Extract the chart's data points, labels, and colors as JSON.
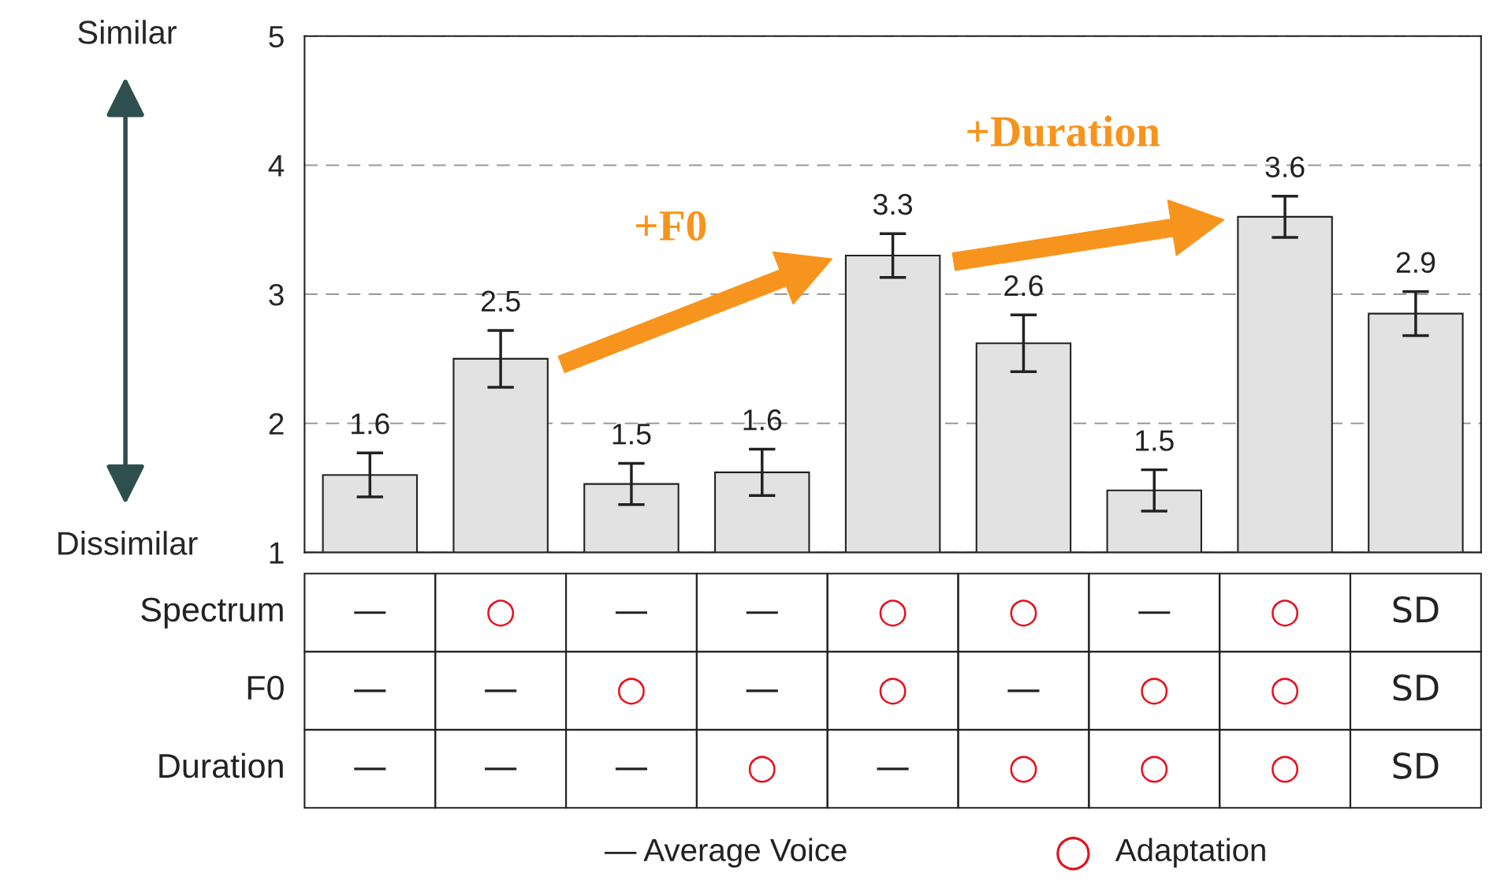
{
  "chart_data": {
    "type": "bar",
    "categories": [
      "—\n—\n—",
      "○\n—\n—",
      "—\n○\n—",
      "—\n—\n○",
      "○\n○\n—",
      "○\n—\n○",
      "—\n○\n○",
      "○\n○\n○",
      "SD\nSD\nSD"
    ],
    "values": [
      1.6,
      2.5,
      1.53,
      1.62,
      3.3,
      2.62,
      1.48,
      3.6,
      2.85
    ],
    "errors": [
      0.17,
      0.22,
      0.16,
      0.18,
      0.17,
      0.22,
      0.16,
      0.16,
      0.17
    ],
    "value_labels": [
      "1.6",
      "2.5",
      "1.5",
      "1.6",
      "3.3",
      "2.6",
      "1.5",
      "3.6",
      "2.9"
    ],
    "color": "#e2e2e2",
    "ylim": [
      1,
      5
    ],
    "yticks": [
      1,
      2,
      3,
      4,
      5
    ],
    "grid": "y",
    "annotations": [
      "Similar",
      "Dissimilar",
      "+F0",
      "+Duration",
      "Spectrum",
      "F0",
      "Duration",
      "— Average Voice",
      "○ Adaptation"
    ]
  }
}
